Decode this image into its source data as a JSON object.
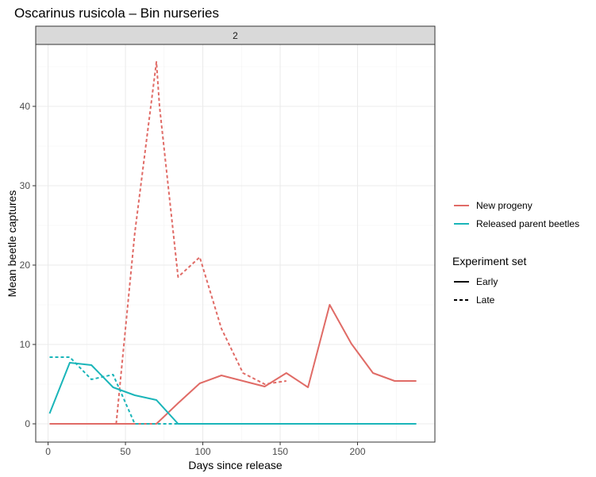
{
  "chart_data": {
    "type": "line",
    "title": "Oscarinus rusicola – Bin nurseries",
    "facet_label": "2",
    "xlabel": "Days since release",
    "ylabel": "Mean beetle captures",
    "xlim": [
      -8,
      250
    ],
    "ylim": [
      -2.3,
      47.8
    ],
    "x_ticks": [
      0,
      50,
      100,
      150,
      200
    ],
    "y_ticks": [
      0,
      10,
      20,
      30,
      40
    ],
    "grid": true,
    "legend_placement": "right",
    "colors": {
      "New progeny": "#e06b66",
      "Released parent beetles": "#1ab5b9"
    },
    "legend": {
      "color_entries": [
        "New progeny",
        "Released parent beetles"
      ],
      "linetype_title": "Experiment set",
      "linetype_entries": [
        "Early",
        "Late"
      ]
    },
    "series": [
      {
        "name": "New progeny",
        "set": "Early",
        "x": [
          1,
          14,
          28,
          42,
          56,
          70,
          84,
          98,
          112,
          126,
          140,
          154,
          168,
          182,
          196,
          210,
          224,
          238
        ],
        "y": [
          0,
          0,
          0,
          0,
          0,
          0,
          2.6,
          5.1,
          6.1,
          5.4,
          4.7,
          6.4,
          4.6,
          15,
          10.1,
          6.4,
          5.4,
          5.4
        ]
      },
      {
        "name": "New progeny",
        "set": "Late",
        "x": [
          1,
          14,
          28,
          42,
          44,
          56,
          70,
          72,
          84,
          98,
          112,
          126,
          140,
          154
        ],
        "y": [
          0,
          0,
          0,
          0,
          0,
          24,
          45.6,
          40,
          18.5,
          21,
          12,
          6.4,
          5,
          5.4
        ]
      },
      {
        "name": "Released parent beetles",
        "set": "Early",
        "x": [
          1,
          14,
          28,
          42,
          56,
          70,
          84,
          98,
          112,
          126,
          140,
          154,
          168,
          182,
          196,
          210,
          224,
          238
        ],
        "y": [
          1.3,
          7.7,
          7.4,
          4.6,
          3.6,
          3,
          0,
          0,
          0,
          0,
          0,
          0,
          0,
          0,
          0,
          0,
          0,
          0
        ]
      },
      {
        "name": "Released parent beetles",
        "set": "Late",
        "x": [
          1,
          14,
          28,
          42,
          56,
          70,
          84
        ],
        "y": [
          8.4,
          8.4,
          5.6,
          6.2,
          0,
          0,
          0
        ]
      }
    ]
  }
}
